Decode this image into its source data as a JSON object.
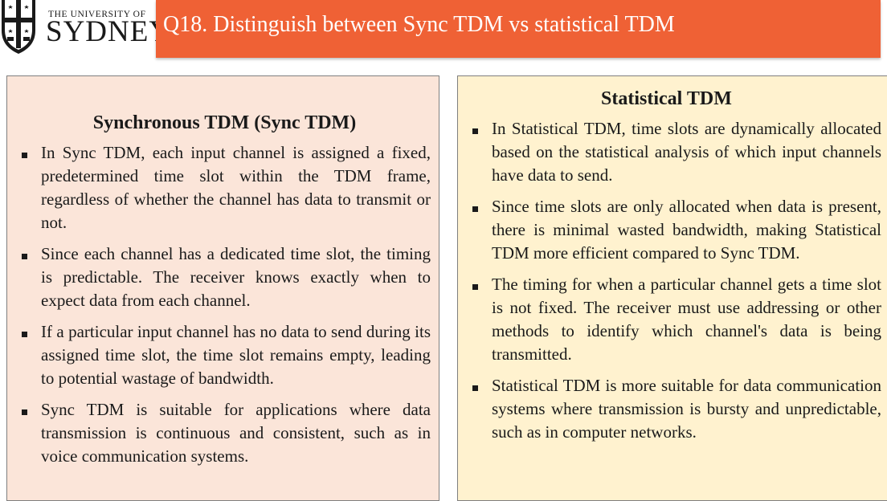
{
  "header": {
    "university_small": "THE UNIVERSITY OF",
    "university_big": "SYDNEY",
    "title": "Q18. Distinguish between Sync TDM vs statistical TDM",
    "accent_color": "#ef6135"
  },
  "left_panel": {
    "heading": "Synchronous TDM (Sync TDM)",
    "background": "#fbe5d9",
    "bullets": [
      "In Sync TDM, each input channel is assigned a fixed, predetermined time slot within the TDM frame, regardless of whether the channel has data to transmit or not.",
      "Since each channel has a dedicated time slot, the timing is predictable. The receiver knows exactly when to expect data from each channel.",
      "If a particular input channel has no data to send during its assigned time slot, the time slot remains empty, leading to potential wastage of bandwidth.",
      "Sync TDM is suitable for applications where data transmission is continuous and consistent, such as in voice communication systems."
    ]
  },
  "right_panel": {
    "heading": "Statistical TDM",
    "background": "#fff2cf",
    "bullets": [
      "In Statistical TDM, time slots are dynamically allocated based on the statistical analysis of which input channels have data to send.",
      "Since time slots are only allocated when data is present, there is minimal wasted bandwidth, making Statistical TDM more efficient compared to Sync TDM.",
      "The timing for when a particular channel gets a time slot is not fixed. The receiver must use addressing or other methods to identify which channel's data is being transmitted.",
      "Statistical TDM is more suitable for data communication systems where transmission is bursty and unpredictable, such as in computer networks."
    ]
  }
}
